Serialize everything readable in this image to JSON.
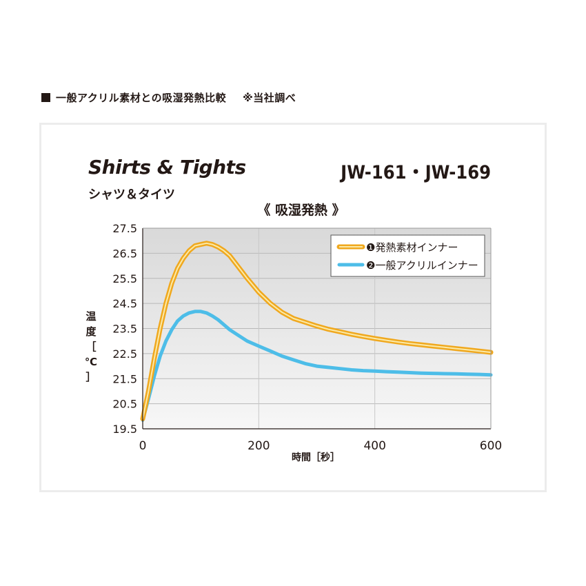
{
  "caption": {
    "text": "一般アクリル素材との吸湿発熱比較",
    "note": "※当社調べ"
  },
  "product": {
    "name_en": "Shirts & Tights",
    "name_ja": "シャツ＆タイツ",
    "models": "JW-161・JW-169"
  },
  "chart_data": {
    "type": "line",
    "title": "《 吸湿発熱 》",
    "xlabel": "時間［秒］",
    "ylabel": "温度［℃］",
    "xlim": [
      0,
      600
    ],
    "ylim": [
      19.5,
      27.5
    ],
    "xticks": [
      "0",
      "200",
      "400",
      "600"
    ],
    "yticks": [
      "27.5",
      "26.5",
      "25.5",
      "24.5",
      "23.5",
      "22.5",
      "21.5",
      "20.5",
      "19.5"
    ],
    "grid": true,
    "legend_position": "top-right",
    "series": [
      {
        "name": "❶発熱素材インナー",
        "color": "#f0a81e",
        "x": [
          0,
          10,
          20,
          30,
          40,
          50,
          60,
          70,
          80,
          90,
          100,
          110,
          120,
          130,
          140,
          150,
          160,
          180,
          200,
          220,
          240,
          260,
          280,
          300,
          320,
          340,
          360,
          380,
          400,
          420,
          440,
          460,
          480,
          500,
          520,
          540,
          560,
          580,
          600
        ],
        "values": [
          19.9,
          21.0,
          22.3,
          23.5,
          24.5,
          25.3,
          25.9,
          26.3,
          26.6,
          26.8,
          26.85,
          26.9,
          26.85,
          26.75,
          26.6,
          26.4,
          26.1,
          25.5,
          24.95,
          24.5,
          24.15,
          23.9,
          23.75,
          23.6,
          23.47,
          23.37,
          23.27,
          23.18,
          23.1,
          23.03,
          22.96,
          22.9,
          22.85,
          22.8,
          22.75,
          22.7,
          22.65,
          22.6,
          22.55
        ]
      },
      {
        "name": "❷一般アクリルインナー",
        "color": "#4dbde8",
        "x": [
          0,
          10,
          20,
          30,
          40,
          50,
          60,
          70,
          80,
          90,
          100,
          110,
          120,
          130,
          140,
          150,
          160,
          180,
          200,
          220,
          240,
          260,
          280,
          300,
          320,
          340,
          360,
          380,
          400,
          420,
          440,
          460,
          480,
          500,
          520,
          540,
          560,
          580,
          600
        ],
        "values": [
          19.85,
          20.7,
          21.6,
          22.4,
          23.0,
          23.45,
          23.8,
          24.0,
          24.12,
          24.18,
          24.18,
          24.12,
          24.0,
          23.85,
          23.65,
          23.45,
          23.3,
          23.0,
          22.8,
          22.6,
          22.4,
          22.25,
          22.1,
          22.0,
          21.95,
          21.9,
          21.85,
          21.82,
          21.8,
          21.78,
          21.76,
          21.74,
          21.72,
          21.71,
          21.7,
          21.69,
          21.68,
          21.67,
          21.65
        ]
      }
    ]
  }
}
